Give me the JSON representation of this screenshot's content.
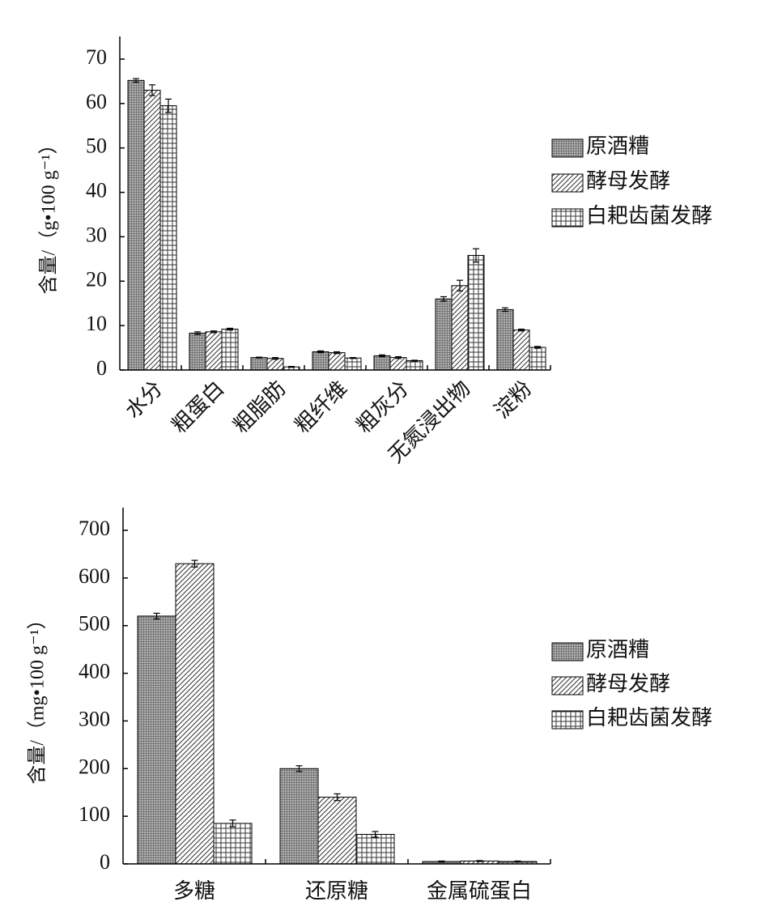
{
  "chart_data": [
    {
      "type": "bar",
      "y_label": "含量/（g•100 g⁻¹）",
      "categories": [
        "水分",
        "粗蛋白",
        "粗脂肪",
        "粗纤维",
        "粗灰分",
        "无氮浸出物",
        "淀粉"
      ],
      "series": [
        {
          "name": "原酒糟",
          "color": "#777777",
          "pattern": "grid",
          "values": [
            65.2,
            8.3,
            2.8,
            4.1,
            3.2,
            16.0,
            13.6
          ],
          "errors": [
            0.4,
            0.3,
            0.1,
            0.2,
            0.2,
            0.5,
            0.4
          ]
        },
        {
          "name": "酵母发酵",
          "color": "#333333",
          "pattern": "diagonal",
          "values": [
            63.0,
            8.6,
            2.6,
            3.9,
            2.8,
            19.0,
            9.0
          ],
          "errors": [
            1.2,
            0.2,
            0.2,
            0.2,
            0.2,
            1.2,
            0.2
          ]
        },
        {
          "name": "白耙齿菌发酵",
          "color": "#333333",
          "pattern": "cross",
          "values": [
            59.5,
            9.2,
            0.7,
            2.7,
            2.1,
            25.8,
            5.1
          ],
          "errors": [
            1.5,
            0.2,
            0.1,
            0.1,
            0.1,
            1.5,
            0.2
          ]
        }
      ],
      "ylim": [
        0,
        70
      ],
      "yticks": [
        0,
        10,
        20,
        30,
        40,
        50,
        60,
        70
      ],
      "x_label_rotation": -45,
      "legend": "right"
    },
    {
      "type": "bar",
      "y_label": "含量/（mg•100 g⁻¹）",
      "categories": [
        "多糖",
        "还原糖",
        "金属硫蛋白"
      ],
      "series": [
        {
          "name": "原酒糟",
          "color": "#777777",
          "pattern": "grid",
          "values": [
            520,
            200,
            5
          ],
          "errors": [
            6,
            6,
            1
          ]
        },
        {
          "name": "酵母发酵",
          "color": "#333333",
          "pattern": "diagonal",
          "values": [
            630,
            140,
            6
          ],
          "errors": [
            7,
            7,
            1
          ]
        },
        {
          "name": "白耙齿菌发酵",
          "color": "#333333",
          "pattern": "cross",
          "values": [
            85,
            62,
            5
          ],
          "errors": [
            7,
            6,
            1
          ]
        }
      ],
      "ylim": [
        0,
        700
      ],
      "yticks": [
        0,
        100,
        200,
        300,
        400,
        500,
        600,
        700
      ],
      "x_label_rotation": 0,
      "legend": "right"
    }
  ]
}
